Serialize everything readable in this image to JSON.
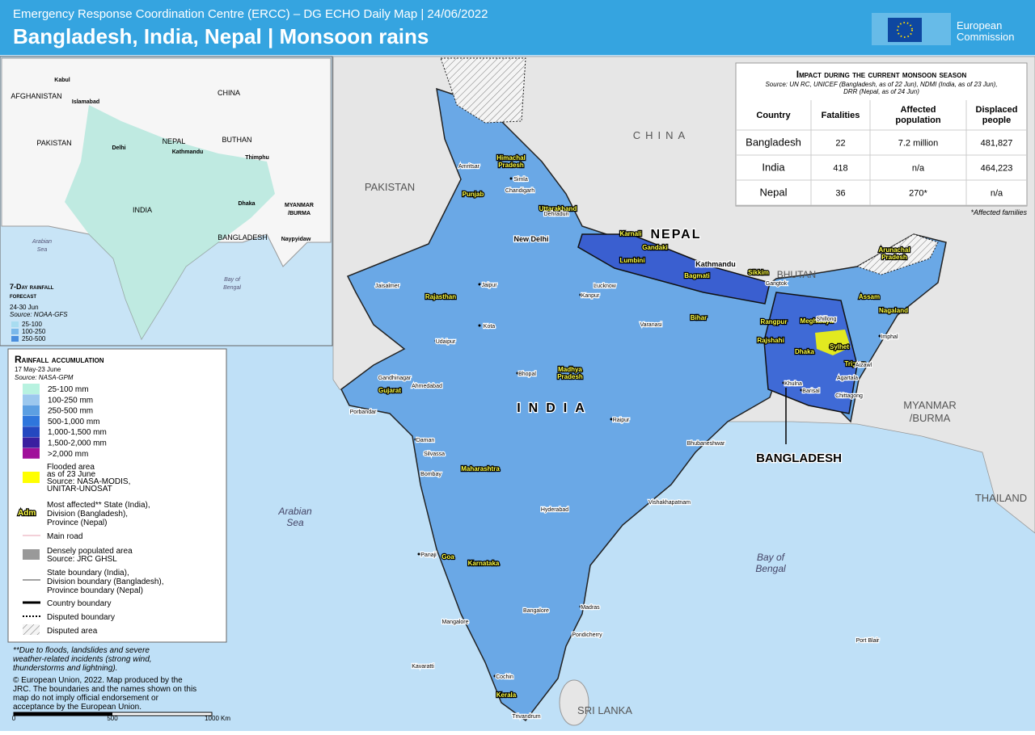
{
  "header": {
    "subtitle": "Emergency Response Coordination Centre (ERCC) – DG ECHO Daily Map | 24/06/2022",
    "title": "Bangladesh, India, Nepal | Monsoon rains",
    "logo": [
      "European",
      "Commission"
    ]
  },
  "table": {
    "title": "Impact during the current monsoon season",
    "source": [
      "Source: UN RC, UNICEF (Bangladesh, as of 22 Jun), NDMI (India, as of 23 Jun),",
      "DRR (Nepal, as of 24 Jun)"
    ],
    "columns": [
      [
        "Country"
      ],
      [
        "Fatalities"
      ],
      [
        "Affected",
        "population"
      ],
      [
        "Displaced",
        "people"
      ]
    ],
    "rows": [
      [
        "Bangladesh",
        "22",
        "7.2 million",
        "481,827"
      ],
      [
        "India",
        "418",
        "n/a",
        "464,223"
      ],
      [
        "Nepal",
        "36",
        "270*",
        "n/a"
      ]
    ],
    "footnote": "*Affected families"
  },
  "inset": {
    "labels": [
      "Kabul",
      "AFGHANISTAN",
      "Islamabad",
      "CHINA",
      "PAKISTAN",
      "Delhi",
      "NEPAL",
      "Kathmandu",
      "BUTHAN",
      "Thimphu",
      "INDIA",
      "Dhaka",
      [
        "MYANMAR",
        "/BURMA"
      ],
      "BANGLADESH",
      "Naypyidaw",
      [
        "Arabian",
        "Sea"
      ],
      [
        "Bay of",
        "Bengal"
      ]
    ],
    "legend": {
      "title": [
        "7-Day rainfall",
        "forecast"
      ],
      "period": "24-30 Jun",
      "source": "Source: NOAA-GFS",
      "items": [
        {
          "label": "25-100",
          "color": "#a8dcf0"
        },
        {
          "label": "100-250",
          "color": "#7ab8ea"
        },
        {
          "label": "250-500",
          "color": "#4a8ede"
        }
      ]
    }
  },
  "map": {
    "countries": [
      "CHINA",
      "PAKISTAN",
      "NEPAL",
      "BHUTAN",
      "INDIA",
      "BANGLADESH",
      [
        "MYANMAR",
        "/BURMA"
      ],
      "THAILAND",
      "SRI LANKA"
    ],
    "seas": [
      [
        "Arabian",
        "Sea"
      ],
      [
        "Bay of",
        "Bengal"
      ]
    ],
    "affected": [
      [
        "Himachal",
        "Pradesh"
      ],
      "Punjab",
      "Uttarakhand",
      "Karnali",
      "Gandaki",
      "Lumbini",
      "Bagmati",
      "Sikkim",
      [
        "Arunachal",
        "Pradesh"
      ],
      "Assam",
      "Nagaland",
      "Meghalaya",
      "Rangpur",
      "Rajshahi",
      "Dhaka",
      "Sylhet",
      "Tripura",
      "Rajasthan",
      "Bihar",
      [
        "Madhya",
        "Pradesh"
      ],
      "Gujarat",
      "Maharashtra",
      "Goa",
      "Karnataka",
      "Kerala"
    ],
    "cities": [
      "Kathmandu",
      "New Delhi",
      "Simla",
      "Chandigarh",
      "Amritsar",
      "Dehradun",
      "Jaipur",
      "Lucknow",
      "Kanpur",
      "Varanasi",
      "Kota",
      "Bhopal",
      "Udaipur",
      "Ahmedabad",
      "Gandhinagar",
      "Porbandar",
      "Silvassa",
      "Daman",
      "Bombay",
      "Hyderabad",
      "Raipur",
      "Bhubaneshwar",
      "Vishakhapatnam",
      "Panaji",
      "Bangalore",
      "Madras",
      "Pondicherry",
      "Mangalore",
      "Kavaratti",
      "Cochin",
      "Trivandrum",
      "Port Blair",
      "Imphal",
      "Aizawl",
      "Khulna",
      "Barisal",
      "Chittagong",
      "Jaisalmer",
      "Gangtok",
      "Shillong",
      "Agartala"
    ]
  },
  "legend": {
    "title": "Rainfall accumulation",
    "period": "17 May-23 June",
    "source": "Source: NASA-GPM",
    "items": [
      {
        "label": "25-100 mm",
        "color": "#b8f2e0"
      },
      {
        "label": "100-250 mm",
        "color": "#9cc8ee"
      },
      {
        "label": "250-500 mm",
        "color": "#5c9fe2"
      },
      {
        "label": "500-1,000 mm",
        "color": "#2f76dc"
      },
      {
        "label": "1,000-1,500 mm",
        "color": "#2448c0"
      },
      {
        "label": "1,500-2,000 mm",
        "color": "#3a1fa0"
      },
      {
        "label": ">2,000 mm",
        "color": "#a0109a"
      }
    ],
    "flooded": {
      "lines": [
        "Flooded area",
        "as of 23 June",
        "Source: NASA-MODIS,",
        "UNITAR-UNOSAT"
      ],
      "color": "#ffff00"
    },
    "adm_sample": "Adm",
    "adm": [
      "Most affected** State (India),",
      "Division (Bangladesh),",
      "Province (Nepal)"
    ],
    "road": "Main road",
    "dense": [
      "Densely populated area",
      "Source: JRC GHSL"
    ],
    "state_boundary": [
      "State boundary (India),",
      "Division boundary (Bangladesh),",
      "Province boundary (Nepal)"
    ],
    "country_boundary": "Country boundary",
    "disputed_boundary": "Disputed boundary",
    "disputed_area": "Disputed area"
  },
  "notes": {
    "footnote": [
      "**Due to floods, landslides and severe",
      "weather-related incidents (strong wind,",
      "thunderstorms and lightning)."
    ],
    "copyright": [
      "© European Union, 2022. Map produced by the",
      "JRC. The boundaries and the names shown on this",
      "map do not imply official endorsement or",
      "acceptance by the European Union."
    ],
    "scale": [
      "0",
      "500",
      "1000",
      "Km"
    ]
  }
}
